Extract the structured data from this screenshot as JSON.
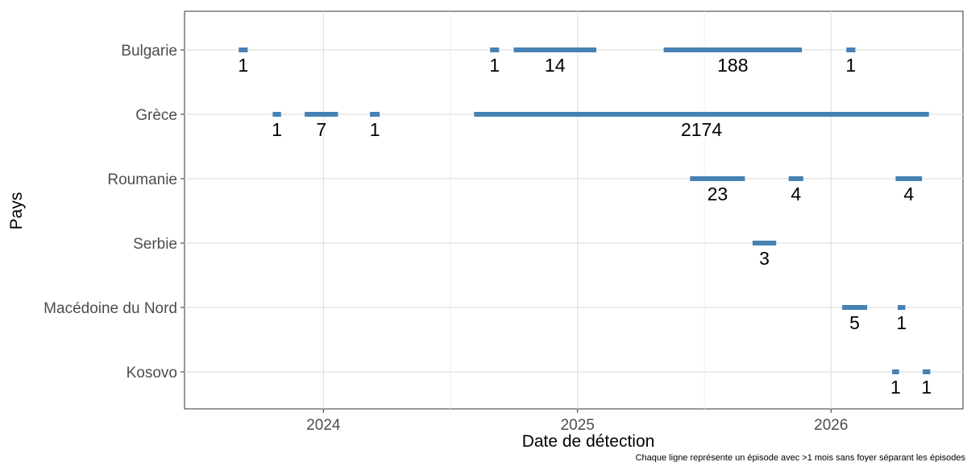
{
  "chart_data": {
    "type": "timeline",
    "xlabel": "Date de détection",
    "ylabel": "Pays",
    "caption": "Chaque ligne représente un épisode avec >1 mois sans foyer séparant les épisodes",
    "grid": true,
    "legend": "none",
    "bar_color": "#4682B4",
    "x_ticks": [
      "2024",
      "2025",
      "2026"
    ],
    "x_tick_dates": [
      "2024-01-01",
      "2025-01-01",
      "2026-01-01"
    ],
    "xlim": [
      "2023-06-15",
      "2026-07-10"
    ],
    "categories": [
      "Bulgarie",
      "Grèce",
      "Roumanie",
      "Serbie",
      "Macédoine du Nord",
      "Kosovo"
    ],
    "episodes": [
      {
        "country": "Bulgarie",
        "start": "2023-09-01",
        "end": "2023-09-14",
        "count": "1"
      },
      {
        "country": "Bulgarie",
        "start": "2024-08-28",
        "end": "2024-09-10",
        "count": "1"
      },
      {
        "country": "Bulgarie",
        "start": "2024-10-01",
        "end": "2025-01-28",
        "count": "14"
      },
      {
        "country": "Bulgarie",
        "start": "2025-05-05",
        "end": "2025-11-20",
        "count": "188"
      },
      {
        "country": "Bulgarie",
        "start": "2026-01-23",
        "end": "2026-02-05",
        "count": "1"
      },
      {
        "country": "Grèce",
        "start": "2023-10-20",
        "end": "2023-11-01",
        "count": "1"
      },
      {
        "country": "Grèce",
        "start": "2023-12-05",
        "end": "2024-01-22",
        "count": "7"
      },
      {
        "country": "Grèce",
        "start": "2024-03-08",
        "end": "2024-03-22",
        "count": "1"
      },
      {
        "country": "Grèce",
        "start": "2024-08-05",
        "end": "2026-05-22",
        "count": "2174"
      },
      {
        "country": "Roumanie",
        "start": "2025-06-12",
        "end": "2025-08-30",
        "count": "23"
      },
      {
        "country": "Roumanie",
        "start": "2025-11-01",
        "end": "2025-11-22",
        "count": "4"
      },
      {
        "country": "Roumanie",
        "start": "2026-04-04",
        "end": "2026-05-12",
        "count": "4"
      },
      {
        "country": "Serbie",
        "start": "2025-09-10",
        "end": "2025-10-14",
        "count": "3"
      },
      {
        "country": "Macédoine du Nord",
        "start": "2026-01-17",
        "end": "2026-02-22",
        "count": "5"
      },
      {
        "country": "Macédoine du Nord",
        "start": "2026-04-07",
        "end": "2026-04-18",
        "count": "1"
      },
      {
        "country": "Kosovo",
        "start": "2026-03-30",
        "end": "2026-04-09",
        "count": "1"
      },
      {
        "country": "Kosovo",
        "start": "2026-05-13",
        "end": "2026-05-24",
        "count": "1"
      }
    ]
  }
}
